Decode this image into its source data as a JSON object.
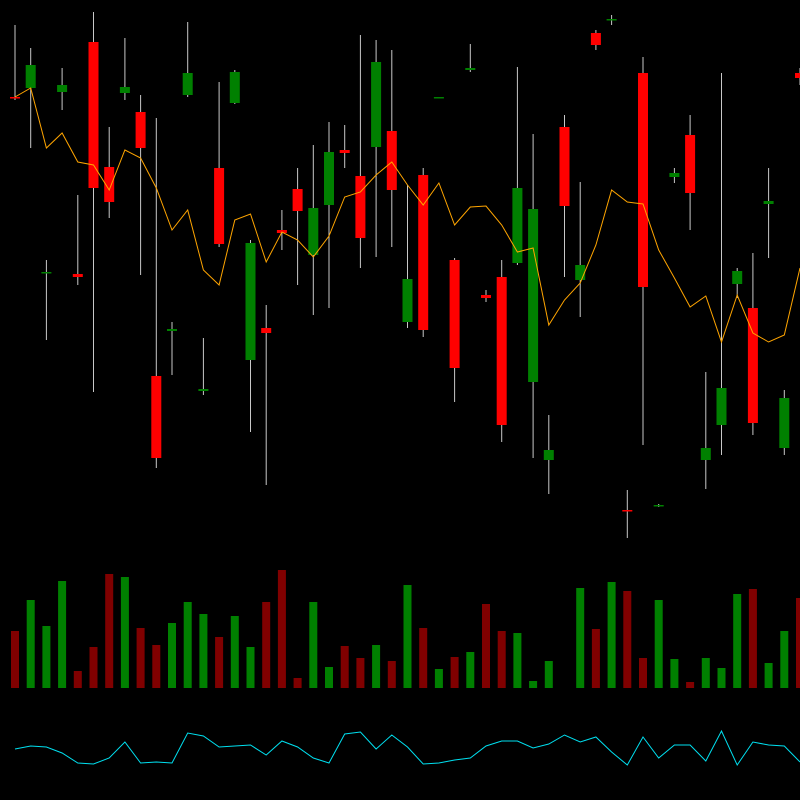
{
  "chart_data": {
    "type": "candlestick",
    "up_color": "#008000",
    "down_color": "#ff0000",
    "wick_color": "#c8c8c8",
    "volume_up_color": "#008000",
    "volume_down_color": "#800000",
    "ma_color": "#ffa500",
    "indicator_color": "#00e0f0",
    "open": [
      703,
      712,
      527,
      708,
      526,
      758,
      633,
      707,
      688,
      424,
      469,
      705,
      409,
      632,
      697,
      440,
      472,
      570,
      611,
      545,
      595,
      650,
      624,
      653,
      669,
      478,
      625,
      702,
      540,
      730,
      505,
      523,
      537,
      418,
      340,
      673,
      520,
      767,
      780,
      290,
      727,
      294,
      623,
      665,
      340,
      375,
      516,
      492,
      596,
      352,
      727
    ],
    "high": [
      775,
      752,
      540,
      732,
      605,
      788,
      673,
      762,
      705,
      682,
      478,
      778,
      462,
      718,
      730,
      560,
      495,
      590,
      632,
      655,
      678,
      675,
      765,
      760,
      750,
      615,
      632,
      703,
      542,
      756,
      510,
      540,
      733,
      666,
      385,
      685,
      618,
      770,
      785,
      310,
      743,
      296,
      632,
      685,
      428,
      727,
      532,
      547,
      632,
      410,
      732
    ],
    "low": [
      700,
      652,
      460,
      690,
      515,
      408,
      582,
      700,
      525,
      332,
      425,
      703,
      405,
      553,
      696,
      368,
      315,
      550,
      515,
      485,
      492,
      632,
      532,
      543,
      553,
      472,
      463,
      702,
      398,
      728,
      498,
      358,
      535,
      342,
      306,
      523,
      483,
      750,
      775,
      262,
      355,
      293,
      617,
      570,
      311,
      345,
      502,
      365,
      542,
      345,
      715
    ],
    "close": [
      702,
      735,
      528,
      715,
      523,
      612,
      598,
      713,
      652,
      342,
      471,
      727,
      411,
      556,
      728,
      557,
      467,
      567,
      589,
      592,
      648,
      647,
      562,
      738,
      610,
      521,
      470,
      703,
      432,
      732,
      502,
      375,
      612,
      591,
      350,
      594,
      535,
      755,
      781,
      289,
      513,
      295,
      627,
      607,
      352,
      412,
      529,
      377,
      599,
      402,
      722
    ],
    "volume": [
      57,
      88,
      62,
      107,
      17,
      41,
      114,
      111,
      60,
      43,
      65,
      86,
      74,
      51,
      72,
      41,
      86,
      118,
      10,
      86,
      21,
      42,
      30,
      43,
      27,
      103,
      60,
      19,
      31,
      36,
      84,
      57,
      55,
      7,
      27,
      0,
      100,
      59,
      106,
      97,
      30,
      88,
      29,
      6,
      30,
      20,
      94,
      99,
      25,
      57,
      90
    ],
    "ma": [
      703,
      712,
      652,
      667,
      638,
      635,
      610,
      650,
      642,
      612,
      570,
      590,
      530,
      515,
      580,
      586,
      538,
      568,
      560,
      543,
      564,
      603,
      608,
      625,
      638,
      615,
      595,
      617,
      575,
      593,
      594,
      575,
      548,
      552,
      475,
      500,
      517,
      555,
      610,
      598,
      596,
      550,
      522,
      493,
      504,
      458,
      505,
      467,
      458,
      465,
      532
    ],
    "indicator": [
      51,
      54,
      53,
      47,
      37,
      36,
      42,
      58,
      37,
      38,
      37,
      67,
      64,
      53,
      54,
      55,
      45,
      59,
      53,
      42,
      37,
      66,
      68,
      51,
      65,
      53,
      36,
      37,
      40,
      42,
      54,
      59,
      59,
      52,
      56,
      65,
      58,
      63,
      48,
      35,
      63,
      42,
      55,
      55,
      39,
      69,
      35,
      58,
      55,
      54,
      38
    ]
  }
}
